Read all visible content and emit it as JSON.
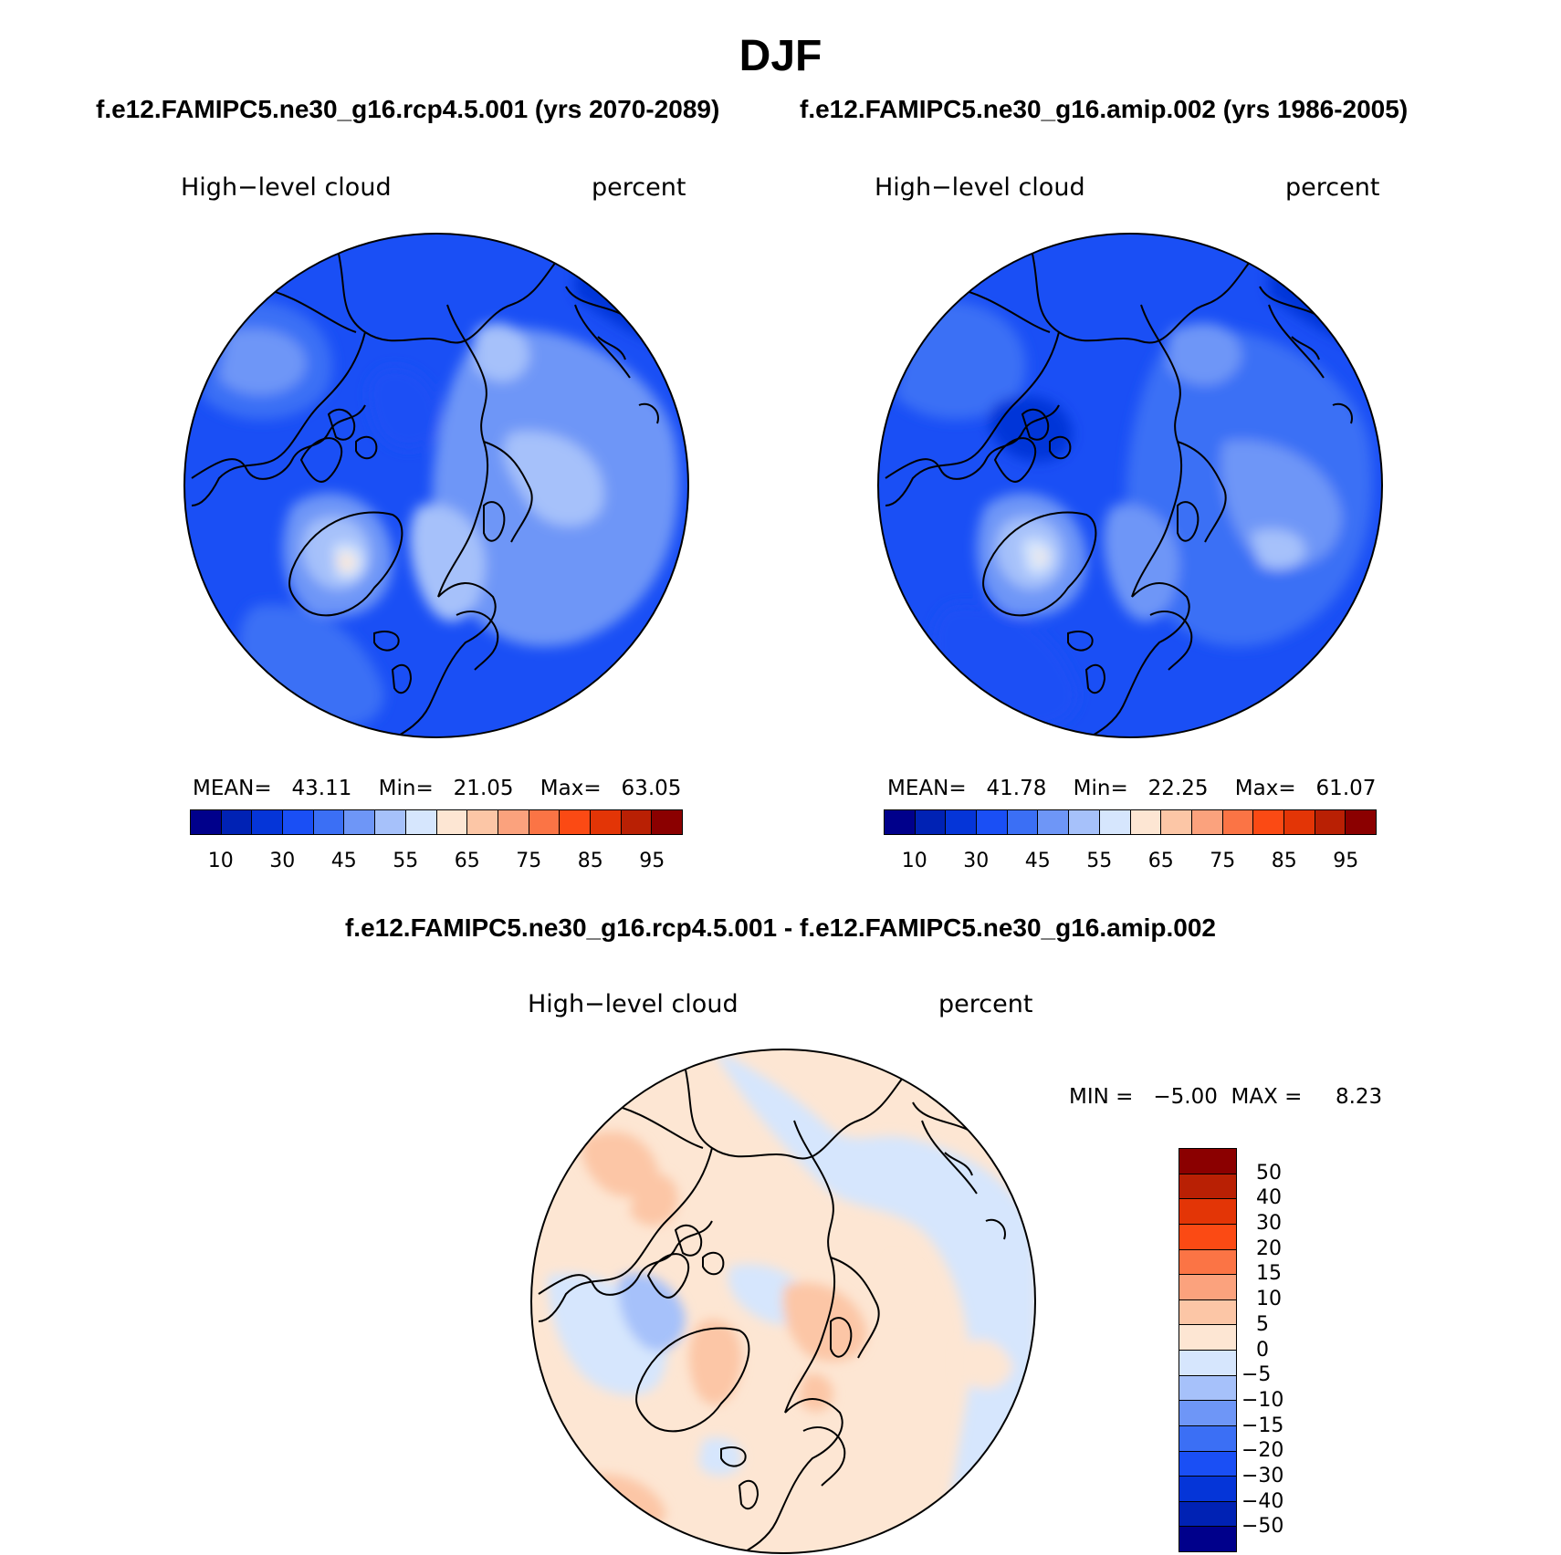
{
  "page_title": "DJF",
  "panels": {
    "case1": {
      "title": "f.e12.FAMIPC5.ne30_g16.rcp4.5.001 (yrs 2070-2089)",
      "variable": "High−level cloud",
      "units": "percent",
      "stats": {
        "mean_label": "MEAN=",
        "mean": "43.11",
        "min_label": "Min=",
        "min": "21.05",
        "max_label": "Max=",
        "max": "63.05"
      }
    },
    "case2": {
      "title": "f.e12.FAMIPC5.ne30_g16.amip.002 (yrs 1986-2005)",
      "variable": "High−level cloud",
      "units": "percent",
      "stats": {
        "mean_label": "MEAN=",
        "mean": "41.78",
        "min_label": "Min=",
        "min": "22.25",
        "max_label": "Max=",
        "max": "61.07"
      }
    },
    "diff": {
      "title": "f.e12.FAMIPC5.ne30_g16.rcp4.5.001 - f.e12.FAMIPC5.ne30_g16.amip.002",
      "variable": "High−level cloud",
      "units": "percent",
      "stats": {
        "min_label": "MIN =",
        "min": "−5.00",
        "max_label": "MAX =",
        "max": "8.23"
      }
    }
  },
  "colorbar_main": {
    "colors": [
      "#00008b",
      "#0022b4",
      "#0535d8",
      "#1a4ff5",
      "#3b6ff5",
      "#6e96f7",
      "#a6c1fa",
      "#d6e6fd",
      "#fde6d3",
      "#fcc6a6",
      "#fba27d",
      "#fb7445",
      "#fb4a14",
      "#e33506",
      "#b92004",
      "#8b0000"
    ],
    "labels": [
      "10",
      "30",
      "45",
      "55",
      "65",
      "75",
      "85",
      "95"
    ]
  },
  "colorbar_diff": {
    "colors": [
      "#8b0000",
      "#b92004",
      "#e33506",
      "#fb4a14",
      "#fb7445",
      "#fba27d",
      "#fcc6a6",
      "#fde6d3",
      "#d6e6fd",
      "#a6c1fa",
      "#6e96f7",
      "#3b6ff5",
      "#1a4ff5",
      "#0535d8",
      "#0022b4",
      "#00008b"
    ],
    "labels": [
      "50",
      "40",
      "30",
      "20",
      "15",
      "10",
      "5",
      "0",
      "−5",
      "−10",
      "−15",
      "−20",
      "−30",
      "−40",
      "−50"
    ]
  }
}
